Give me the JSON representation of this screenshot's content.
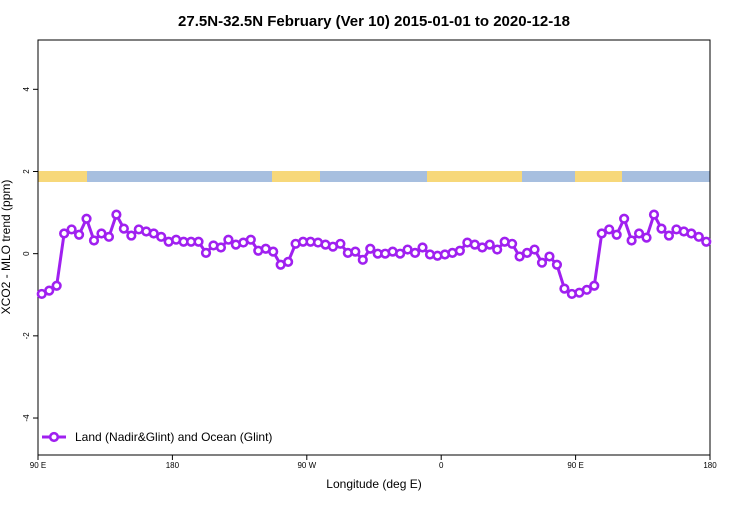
{
  "chart_data": {
    "type": "line",
    "title": "27.5N-32.5N February (Ver 10)   2015-01-01 to 2020-12-18",
    "x_label": "Longitude (deg E)",
    "y_label": "XCO2 - MLO trend (ppm)",
    "xlim": [
      90,
      540
    ],
    "ylim": [
      -4.9,
      5.2
    ],
    "xticks": [
      {
        "value": 90,
        "label": "90 E"
      },
      180,
      {
        "value": 270,
        "label": "90 W"
      },
      {
        "value": 360,
        "label": "0"
      },
      {
        "value": 450,
        "label": "90 E"
      },
      {
        "value": 540,
        "label": "180"
      }
    ],
    "yticks": [
      -4,
      -2,
      0,
      2,
      4
    ],
    "legend": "bottom-left",
    "x": [
      92.5,
      97.5,
      102.5,
      107.5,
      112.5,
      117.5,
      122.5,
      127.5,
      132.5,
      137.5,
      142.5,
      147.5,
      152.5,
      157.5,
      162.5,
      167.5,
      172.5,
      177.5,
      182.5,
      187.5,
      192.5,
      197.5,
      202.5,
      207.5,
      212.5,
      217.5,
      222.5,
      227.5,
      232.5,
      237.5,
      242.5,
      247.5,
      252.5,
      257.5,
      262.5,
      267.5,
      272.5,
      277.5,
      282.5,
      287.5,
      292.5,
      297.5,
      302.5,
      307.5,
      312.5,
      317.5,
      322.5,
      327.5,
      332.5,
      337.5,
      342.5,
      347.5,
      352.5,
      357.5,
      362.5,
      367.5,
      372.5,
      377.5,
      382.5,
      387.5,
      392.5,
      397.5,
      402.5,
      407.5,
      412.5,
      417.5,
      422.5,
      427.5,
      432.5,
      437.5,
      442.5,
      447.5,
      452.5,
      457.5,
      462.5,
      467.5,
      472.5,
      477.5,
      482.5,
      487.5,
      492.5,
      497.5,
      502.5,
      507.5,
      512.5,
      517.5,
      522.5,
      527.5,
      532.5,
      537.5
    ],
    "series": [
      {
        "name": "Land (Nadir&Glint) and Ocean (Glint)",
        "color": "#a020f0",
        "values": [
          -0.98,
          -0.9,
          -0.78,
          0.49,
          0.59,
          0.46,
          0.85,
          0.32,
          0.49,
          0.41,
          0.95,
          0.61,
          0.44,
          0.59,
          0.54,
          0.49,
          0.41,
          0.29,
          0.34,
          0.29,
          0.29,
          0.29,
          0.02,
          0.2,
          0.15,
          0.34,
          0.22,
          0.27,
          0.34,
          0.07,
          0.12,
          0.05,
          -0.27,
          -0.2,
          0.24,
          0.29,
          0.29,
          0.27,
          0.22,
          0.17,
          0.24,
          0.02,
          0.05,
          -0.15,
          0.12,
          0,
          0,
          0.05,
          0,
          0.1,
          0.02,
          0.15,
          -0.02,
          -0.05,
          -0.02,
          0.02,
          0.07,
          0.27,
          0.22,
          0.15,
          0.22,
          0.1,
          0.29,
          0.24,
          -0.07,
          0.02,
          0.1,
          -0.22,
          -0.07,
          -0.27,
          -0.85,
          -0.98,
          -0.95,
          -0.88,
          -0.78,
          0.49,
          0.59,
          0.46,
          0.85,
          0.32,
          0.49,
          0.39,
          0.95,
          0.61,
          0.44,
          0.59,
          0.54,
          0.49,
          0.41,
          0.29
        ]
      }
    ]
  }
}
